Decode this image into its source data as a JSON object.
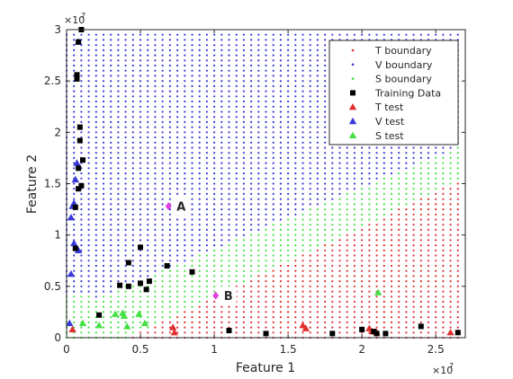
{
  "chart_data": {
    "type": "scatter",
    "xlabel": "Feature 1",
    "ylabel": "Feature 2",
    "x_exponent_label": "×10",
    "x_exponent_power": "7",
    "y_exponent_label": "×10",
    "y_exponent_power": "7",
    "xlim": [
      0,
      27000000
    ],
    "ylim": [
      0,
      30000000
    ],
    "x_ticks": [
      0,
      5000000,
      10000000,
      15000000,
      20000000,
      25000000
    ],
    "x_tick_labels": [
      "0",
      "0.5",
      "1",
      "1.5",
      "2",
      "2.5"
    ],
    "y_ticks": [
      0,
      5000000,
      10000000,
      15000000,
      20000000,
      25000000,
      30000000
    ],
    "y_tick_labels": [
      "0",
      "0.5",
      "1",
      "1.5",
      "2",
      "2.5",
      "3"
    ],
    "grid": false,
    "legend_position": "top-right",
    "colors": {
      "T": "#e03030",
      "V": "#3838d8",
      "S": "#44e044",
      "training": "#000000",
      "query": "#e040e0"
    },
    "legend": [
      {
        "label": "T boundary",
        "marker": "dot",
        "color": "#e03030"
      },
      {
        "label": "V boundary",
        "marker": "dot",
        "color": "#3838d8"
      },
      {
        "label": "S boundary",
        "marker": "dot",
        "color": "#44e044"
      },
      {
        "label": "Training Data",
        "marker": "square",
        "color": "#000000"
      },
      {
        "label": "T test",
        "marker": "triangle",
        "color": "#e03030"
      },
      {
        "label": "V test",
        "marker": "triangle",
        "color": "#3838d8"
      },
      {
        "label": "S test",
        "marker": "triangle",
        "color": "#44e044"
      }
    ],
    "boundary_grid": {
      "x_step": 500000,
      "y_step": 500000,
      "x_range": [
        0,
        26500000
      ],
      "y_range": [
        0,
        29500000
      ],
      "regions": "V above the S region; S bounded by y < 2.7e6 + 0.6*x; T where y < 0.68*x - 2.8e6; S at bottom-left up to x ~ 1.8e6 when y < 4.5e6"
    },
    "training_data": [
      [
        1000000,
        30000000
      ],
      [
        800000,
        28800000
      ],
      [
        700000,
        25600000
      ],
      [
        700000,
        25200000
      ],
      [
        900000,
        20500000
      ],
      [
        900000,
        19200000
      ],
      [
        1100000,
        17300000
      ],
      [
        800000,
        16500000
      ],
      [
        1000000,
        14800000
      ],
      [
        800000,
        14500000
      ],
      [
        600000,
        12700000
      ],
      [
        600000,
        8700000
      ],
      [
        5000000,
        8800000
      ],
      [
        4200000,
        7300000
      ],
      [
        6800000,
        7000000
      ],
      [
        8500000,
        6400000
      ],
      [
        5600000,
        5500000
      ],
      [
        5000000,
        5300000
      ],
      [
        3600000,
        5100000
      ],
      [
        4200000,
        5000000
      ],
      [
        5400000,
        4700000
      ],
      [
        2200000,
        2200000
      ],
      [
        11000000,
        700000
      ],
      [
        13500000,
        400000
      ],
      [
        18000000,
        400000
      ],
      [
        20000000,
        800000
      ],
      [
        20800000,
        600000
      ],
      [
        21000000,
        400000
      ],
      [
        21600000,
        400000
      ],
      [
        24000000,
        1100000
      ],
      [
        26500000,
        500000
      ]
    ],
    "T_test": [
      [
        400000,
        800000
      ],
      [
        7200000,
        1000000
      ],
      [
        7300000,
        500000
      ],
      [
        16000000,
        1200000
      ],
      [
        16200000,
        900000
      ],
      [
        20500000,
        900000
      ],
      [
        20700000,
        600000
      ],
      [
        21000000,
        500000
      ],
      [
        26000000,
        500000
      ]
    ],
    "V_test": [
      [
        800000,
        28800000
      ],
      [
        700000,
        17000000
      ],
      [
        600000,
        15400000
      ],
      [
        500000,
        13100000
      ],
      [
        400000,
        12800000
      ],
      [
        300000,
        11700000
      ],
      [
        500000,
        9200000
      ],
      [
        800000,
        8500000
      ],
      [
        300000,
        6200000
      ],
      [
        200000,
        1400000
      ]
    ],
    "S_test": [
      [
        1100000,
        1400000
      ],
      [
        2200000,
        1200000
      ],
      [
        3300000,
        2300000
      ],
      [
        3800000,
        2400000
      ],
      [
        3900000,
        2100000
      ],
      [
        4100000,
        1100000
      ],
      [
        4900000,
        2300000
      ],
      [
        5300000,
        1400000
      ],
      [
        21100000,
        4400000
      ]
    ],
    "annotations": [
      {
        "label": "A",
        "x": 6900000,
        "y": 12800000
      },
      {
        "label": "B",
        "x": 10100000,
        "y": 4100000
      }
    ]
  }
}
